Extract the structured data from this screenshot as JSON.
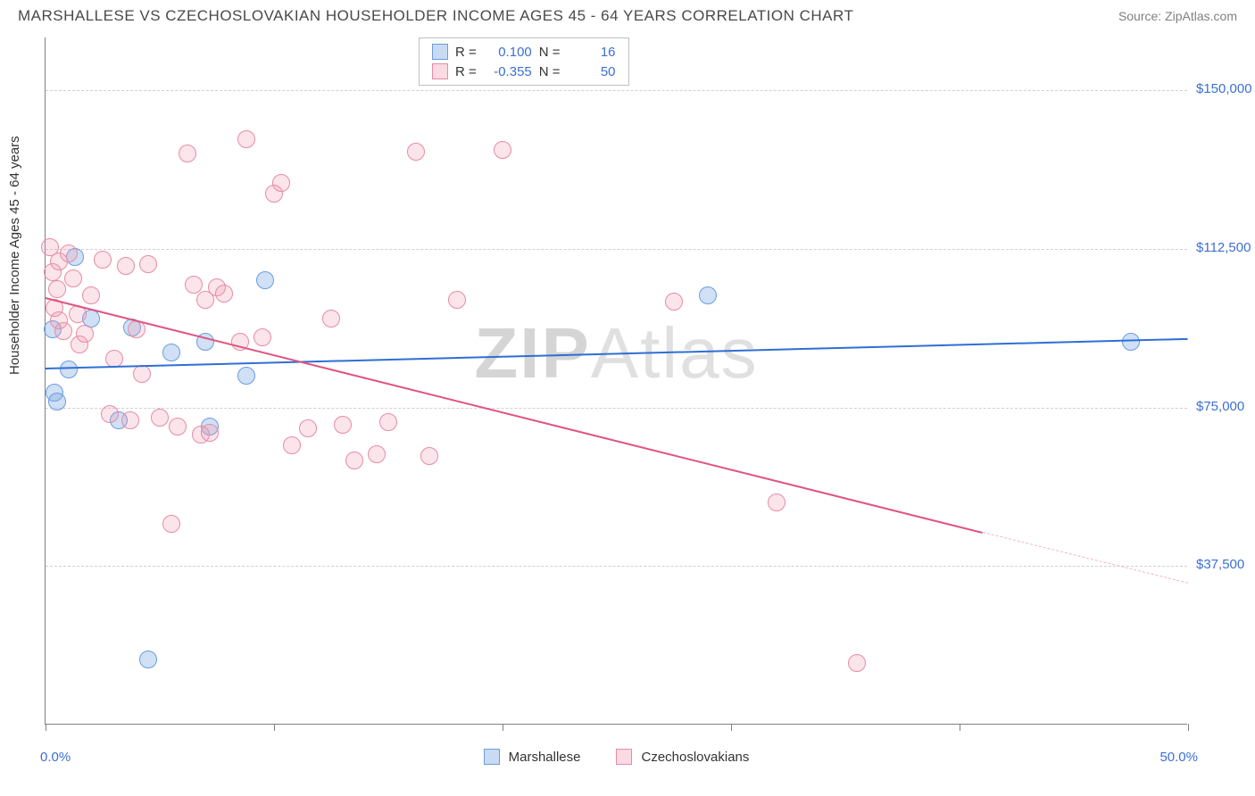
{
  "title": "MARSHALLESE VS CZECHOSLOVAKIAN HOUSEHOLDER INCOME AGES 45 - 64 YEARS CORRELATION CHART",
  "source": "Source: ZipAtlas.com",
  "y_axis_label": "Householder Income Ages 45 - 64 years",
  "watermark_bold": "ZIP",
  "watermark_rest": "Atlas",
  "chart": {
    "type": "scatter",
    "xlim": [
      0,
      50
    ],
    "ylim": [
      0,
      162500
    ],
    "x_labels": [
      {
        "x": 0,
        "text": "0.0%"
      },
      {
        "x": 50,
        "text": "50.0%"
      }
    ],
    "x_ticks": [
      0,
      10,
      20,
      30,
      40,
      50
    ],
    "y_gridlines": [
      37500,
      75000,
      112500,
      150000
    ],
    "y_tick_labels": [
      {
        "y": 37500,
        "text": "$37,500"
      },
      {
        "y": 75000,
        "text": "$75,000"
      },
      {
        "y": 112500,
        "text": "$112,500"
      },
      {
        "y": 150000,
        "text": "$150,000"
      }
    ],
    "point_radius": 10,
    "colors": {
      "blue_fill": "rgba(120,165,225,0.35)",
      "blue_stroke": "#6a9de0",
      "blue_line": "#2e6fd6",
      "pink_fill": "rgba(240,150,175,0.25)",
      "pink_stroke": "#e88aa5",
      "pink_line": "#e05580",
      "grid": "#d0d0d0",
      "axis": "#808080",
      "tick_text": "#3b6fd4"
    },
    "series": [
      {
        "name": "Marshallese",
        "color": "blue",
        "R": "0.100",
        "N": "16",
        "trend": {
          "x1": 0,
          "y1": 84500,
          "x2": 50,
          "y2": 91500
        },
        "points": [
          {
            "x": 1.3,
            "y": 110500
          },
          {
            "x": 0.3,
            "y": 93500
          },
          {
            "x": 0.4,
            "y": 78500
          },
          {
            "x": 0.5,
            "y": 76500
          },
          {
            "x": 3.2,
            "y": 72000
          },
          {
            "x": 7.0,
            "y": 90500
          },
          {
            "x": 7.2,
            "y": 70500
          },
          {
            "x": 8.8,
            "y": 82500
          },
          {
            "x": 9.6,
            "y": 105000
          },
          {
            "x": 29.0,
            "y": 101500
          },
          {
            "x": 47.5,
            "y": 90500
          },
          {
            "x": 4.5,
            "y": 15500
          },
          {
            "x": 2.0,
            "y": 96000
          },
          {
            "x": 3.8,
            "y": 94000
          },
          {
            "x": 1.0,
            "y": 84000
          },
          {
            "x": 5.5,
            "y": 88000
          }
        ]
      },
      {
        "name": "Czechoslovakians",
        "color": "pink",
        "R": "-0.355",
        "N": "50",
        "trend": {
          "x1": 0,
          "y1": 101000,
          "x2": 41,
          "y2": 45500
        },
        "trend_dashed": {
          "x1": 41,
          "y1": 45500,
          "x2": 50,
          "y2": 33500
        },
        "points": [
          {
            "x": 0.2,
            "y": 113000
          },
          {
            "x": 0.3,
            "y": 107000
          },
          {
            "x": 0.4,
            "y": 98500
          },
          {
            "x": 0.5,
            "y": 103000
          },
          {
            "x": 0.6,
            "y": 109500
          },
          {
            "x": 0.6,
            "y": 95500
          },
          {
            "x": 0.8,
            "y": 93000
          },
          {
            "x": 1.0,
            "y": 111500
          },
          {
            "x": 1.2,
            "y": 105500
          },
          {
            "x": 1.4,
            "y": 97000
          },
          {
            "x": 1.5,
            "y": 90000
          },
          {
            "x": 1.7,
            "y": 92500
          },
          {
            "x": 2.0,
            "y": 101500
          },
          {
            "x": 2.5,
            "y": 110000
          },
          {
            "x": 2.8,
            "y": 73500
          },
          {
            "x": 3.0,
            "y": 86500
          },
          {
            "x": 3.5,
            "y": 108500
          },
          {
            "x": 3.7,
            "y": 72000
          },
          {
            "x": 4.0,
            "y": 93500
          },
          {
            "x": 4.2,
            "y": 83000
          },
          {
            "x": 4.5,
            "y": 109000
          },
          {
            "x": 5.0,
            "y": 72500
          },
          {
            "x": 5.5,
            "y": 47500
          },
          {
            "x": 5.8,
            "y": 70500
          },
          {
            "x": 6.2,
            "y": 135000
          },
          {
            "x": 6.5,
            "y": 104000
          },
          {
            "x": 6.8,
            "y": 68500
          },
          {
            "x": 7.0,
            "y": 100500
          },
          {
            "x": 7.2,
            "y": 69000
          },
          {
            "x": 7.5,
            "y": 103500
          },
          {
            "x": 7.8,
            "y": 102000
          },
          {
            "x": 8.5,
            "y": 90500
          },
          {
            "x": 8.8,
            "y": 138500
          },
          {
            "x": 9.5,
            "y": 91500
          },
          {
            "x": 10.0,
            "y": 125500
          },
          {
            "x": 10.3,
            "y": 128000
          },
          {
            "x": 10.8,
            "y": 66000
          },
          {
            "x": 11.5,
            "y": 70000
          },
          {
            "x": 12.5,
            "y": 96000
          },
          {
            "x": 13.0,
            "y": 71000
          },
          {
            "x": 13.5,
            "y": 62500
          },
          {
            "x": 14.5,
            "y": 64000
          },
          {
            "x": 15.0,
            "y": 71500
          },
          {
            "x": 16.2,
            "y": 135500
          },
          {
            "x": 16.8,
            "y": 63500
          },
          {
            "x": 18.0,
            "y": 100500
          },
          {
            "x": 20.0,
            "y": 136000
          },
          {
            "x": 32.0,
            "y": 52500
          },
          {
            "x": 35.5,
            "y": 14500
          },
          {
            "x": 27.5,
            "y": 100000
          }
        ]
      }
    ]
  },
  "stats_legend_labels": {
    "R": "R  =",
    "N": "N  ="
  },
  "bottom_legend": [
    {
      "color": "blue",
      "label": "Marshallese"
    },
    {
      "color": "pink",
      "label": "Czechoslovakians"
    }
  ]
}
